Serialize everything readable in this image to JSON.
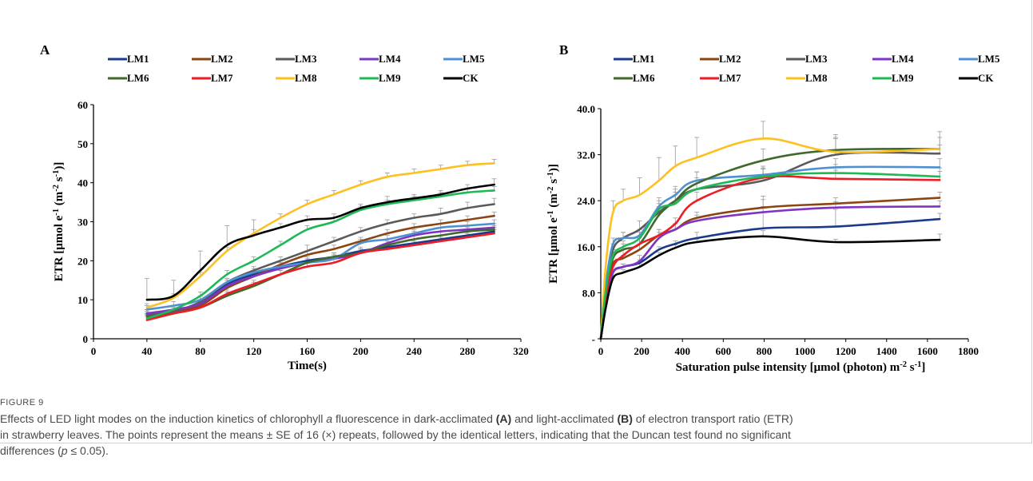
{
  "figure": {
    "label": "FIGURE 9",
    "caption_parts": [
      {
        "t": "Effects of LED light modes on the induction kinetics of chlorophyll ",
        "s": "n"
      },
      {
        "t": "a",
        "s": "i"
      },
      {
        "t": " fluorescence in dark-acclimated ",
        "s": "n"
      },
      {
        "t": "(A)",
        "s": "b"
      },
      {
        "t": " and light-acclimated ",
        "s": "n"
      },
      {
        "t": "(B)",
        "s": "b"
      },
      {
        "t": " of electron transport ratio (ETR) in strawberry leaves. The points represent the means ± SE of 16 (×) repeats, followed by the identical letters, indicating that the Duncan test found no significant differences (",
        "s": "n"
      },
      {
        "t": "p",
        "s": "i"
      },
      {
        "t": " ≤ 0.05).",
        "s": "n"
      }
    ]
  },
  "colors": {
    "LM1": "#1a3b8c",
    "LM2": "#8b4513",
    "LM3": "#5a5a5a",
    "LM4": "#8034c4",
    "LM5": "#4f91d0",
    "LM6": "#3f6a2a",
    "LM7": "#ee1c24",
    "LM8": "#fdc020",
    "LM9": "#1db954",
    "CK": "#000000",
    "axis": "#000000",
    "errorbar": "#9a9a9a"
  },
  "chart_data": [
    {
      "panel": "A",
      "type": "line",
      "xlabel": "Time(s)",
      "ylabel": "ETR [μmol e-1 (m-2 s-1)]",
      "xlim": [
        0,
        320
      ],
      "ylim": [
        0,
        60
      ],
      "xticks": [
        "0",
        "40",
        "80",
        "120",
        "160",
        "200",
        "240",
        "280",
        "320"
      ],
      "yticks": [
        "0",
        "10",
        "20",
        "30",
        "40",
        "50",
        "60"
      ],
      "x": [
        40,
        60,
        80,
        100,
        120,
        140,
        160,
        180,
        200,
        220,
        240,
        260,
        280,
        300
      ],
      "legend": [
        "LM1",
        "LM2",
        "LM3",
        "LM4",
        "LM5",
        "LM6",
        "LM7",
        "LM8",
        "LM9",
        "CK"
      ],
      "series": [
        {
          "name": "LM1",
          "values": [
            6.5,
            7,
            9,
            14,
            16.5,
            18.5,
            20,
            21,
            22.5,
            23.5,
            24.5,
            25.5,
            26.5,
            27.5
          ],
          "errors": [
            1,
            1,
            1,
            1,
            1,
            1,
            1,
            1,
            1,
            1,
            1,
            1,
            1,
            1
          ]
        },
        {
          "name": "LM2",
          "values": [
            6,
            7,
            8.5,
            13,
            16,
            19,
            21.5,
            23,
            25,
            27,
            28.5,
            29.5,
            30.5,
            31.5
          ],
          "errors": [
            1,
            1,
            1,
            1,
            1.5,
            1,
            1,
            1,
            1,
            1,
            1,
            1,
            1,
            1
          ]
        },
        {
          "name": "LM3",
          "values": [
            6,
            7,
            9.5,
            14.5,
            17.5,
            20,
            22.5,
            25,
            27.5,
            29.5,
            31,
            32,
            33.5,
            34.5
          ],
          "errors": [
            1,
            1,
            1.5,
            1,
            1,
            1,
            1.5,
            1,
            1,
            1,
            1,
            1.5,
            1.5,
            1.5
          ]
        },
        {
          "name": "LM4",
          "values": [
            6.5,
            7.5,
            9,
            13.5,
            16,
            18,
            19.5,
            20.5,
            22,
            24.5,
            26.5,
            27.5,
            28,
            28.5
          ],
          "errors": [
            1,
            1,
            1,
            1,
            1,
            1,
            1,
            1,
            1,
            1,
            1,
            1,
            1,
            1
          ]
        },
        {
          "name": "LM5",
          "values": [
            7.5,
            8.5,
            10,
            14.5,
            17,
            18.5,
            19.5,
            20.5,
            24.5,
            25.5,
            27,
            28.5,
            29,
            29.5
          ],
          "errors": [
            1,
            1,
            1,
            1,
            1,
            1,
            1,
            1,
            1,
            1,
            1,
            1,
            1,
            1
          ]
        },
        {
          "name": "LM6",
          "values": [
            5.5,
            6.5,
            8,
            11,
            13.5,
            16.5,
            19.5,
            21,
            22,
            24,
            25.5,
            26.5,
            27.5,
            28
          ],
          "errors": [
            1,
            1,
            1,
            1,
            1,
            1,
            1,
            1,
            1,
            1,
            1,
            1,
            1,
            1
          ]
        },
        {
          "name": "LM7",
          "values": [
            4.8,
            6.5,
            8,
            11.5,
            14,
            16.5,
            18.5,
            19.5,
            22,
            23,
            24,
            25,
            26,
            27
          ],
          "errors": [
            1,
            1,
            1,
            1,
            1,
            1,
            1,
            1,
            1,
            1,
            1,
            1,
            1,
            1
          ]
        },
        {
          "name": "LM8",
          "values": [
            8,
            10.5,
            16,
            22.5,
            27,
            31,
            34.5,
            37,
            39.5,
            41.5,
            42.5,
            43.5,
            44.5,
            45
          ],
          "errors": [
            1,
            1,
            1,
            1,
            1,
            1,
            1,
            1,
            1,
            1,
            1,
            1,
            1,
            1
          ]
        },
        {
          "name": "LM9",
          "values": [
            5.2,
            7.5,
            11,
            16.5,
            20,
            24,
            28,
            30,
            33,
            34.5,
            35.5,
            36.5,
            37.5,
            38
          ],
          "errors": [
            1,
            1,
            1,
            1,
            1,
            1,
            1,
            1,
            1,
            1,
            1,
            1,
            1,
            1
          ]
        },
        {
          "name": "CK",
          "values": [
            10,
            11,
            17.5,
            24,
            26.5,
            28.5,
            30.5,
            31,
            33.5,
            35,
            36,
            37,
            38.5,
            39.5
          ],
          "errors": [
            5.5,
            4,
            5,
            5,
            4,
            1,
            1,
            1,
            1,
            1.5,
            1,
            1,
            1,
            1.5
          ]
        }
      ]
    },
    {
      "panel": "B",
      "type": "line",
      "xlabel": "Saturation pulse intensity [μmol (photon) m-2 s-1]",
      "ylabel": "ETR [μmol e-1 (m-2 s-1)]",
      "xlim": [
        0,
        1800
      ],
      "ylim": [
        0,
        40
      ],
      "xticks": [
        "0",
        "200",
        "400",
        "600",
        "800",
        "1000",
        "1200",
        "1400",
        "1600",
        "1800"
      ],
      "yticks": [
        "-",
        "8.0",
        "16.0",
        "24.0",
        "32.0",
        "40.0"
      ],
      "x": [
        0,
        25,
        60,
        110,
        190,
        285,
        365,
        470,
        795,
        1150,
        1660
      ],
      "legend": [
        "LM1",
        "LM2",
        "LM3",
        "LM4",
        "LM5",
        "LM6",
        "LM7",
        "LM8",
        "LM9",
        "CK"
      ],
      "series": [
        {
          "name": "LM1",
          "values": [
            0,
            6,
            11.5,
            12.5,
            13.2,
            15.5,
            16.5,
            17.5,
            19.2,
            19.5,
            20.8
          ],
          "errors": [
            0,
            0,
            0.5,
            0.5,
            0.5,
            0.5,
            0.5,
            1,
            5,
            3,
            1
          ]
        },
        {
          "name": "LM2",
          "values": [
            0,
            7,
            13,
            14,
            15.5,
            18,
            19,
            21,
            22.8,
            23.5,
            24.5
          ],
          "errors": [
            0,
            0,
            0.5,
            0.5,
            1,
            1,
            1,
            1,
            2,
            1,
            1
          ]
        },
        {
          "name": "LM3",
          "values": [
            0,
            9,
            15.5,
            17.5,
            19,
            22,
            24,
            26,
            27.5,
            32,
            32.2
          ],
          "errors": [
            0,
            0,
            1,
            1,
            1.5,
            1.5,
            1.5,
            2,
            2,
            3,
            1.5
          ]
        },
        {
          "name": "LM4",
          "values": [
            0,
            6.5,
            11.5,
            12.5,
            13.5,
            17.5,
            19,
            20.5,
            22,
            22.8,
            23
          ],
          "errors": [
            0,
            0,
            0.5,
            0.5,
            1,
            1,
            1,
            1,
            1,
            1,
            1
          ]
        },
        {
          "name": "LM5",
          "values": [
            0,
            9.5,
            16.5,
            17.5,
            18,
            23,
            25,
            27.5,
            28.5,
            29.8,
            29.8
          ],
          "errors": [
            0,
            0,
            1,
            1,
            1,
            1.5,
            1.5,
            1.5,
            1.5,
            1.5,
            1.5
          ]
        },
        {
          "name": "LM6",
          "values": [
            0,
            8,
            14,
            15.5,
            16.5,
            21.5,
            24,
            27,
            31,
            32.8,
            33
          ],
          "errors": [
            0,
            0,
            1,
            1,
            1,
            1.5,
            2,
            2,
            2,
            2,
            2
          ]
        },
        {
          "name": "LM7",
          "values": [
            0,
            7.5,
            12.5,
            14.5,
            16.5,
            18,
            20,
            24,
            28,
            27.8,
            27.6
          ],
          "errors": [
            0,
            0,
            1,
            1,
            1,
            1,
            1,
            1.5,
            1.5,
            1.5,
            1.5
          ]
        },
        {
          "name": "LM8",
          "values": [
            0,
            13,
            22,
            24,
            25,
            27.5,
            30,
            31.5,
            34.8,
            32.5,
            33
          ],
          "errors": [
            0,
            0,
            2,
            2,
            3,
            4,
            3.5,
            3.5,
            3,
            3,
            3
          ]
        },
        {
          "name": "LM9",
          "values": [
            0,
            8.5,
            14.5,
            16,
            17.5,
            22.5,
            23.5,
            26,
            28.2,
            28.8,
            28.2
          ],
          "errors": [
            0,
            0,
            1,
            1,
            1,
            1.5,
            1.5,
            1.5,
            1.5,
            1.5,
            1.5
          ]
        },
        {
          "name": "CK",
          "values": [
            0,
            5.5,
            10.5,
            11.5,
            12.5,
            14.5,
            15.8,
            16.8,
            17.8,
            16.8,
            17.2
          ],
          "errors": [
            0,
            0,
            0.5,
            0.5,
            0.5,
            0.5,
            0.5,
            0.5,
            1,
            0.5,
            1
          ]
        }
      ]
    }
  ]
}
